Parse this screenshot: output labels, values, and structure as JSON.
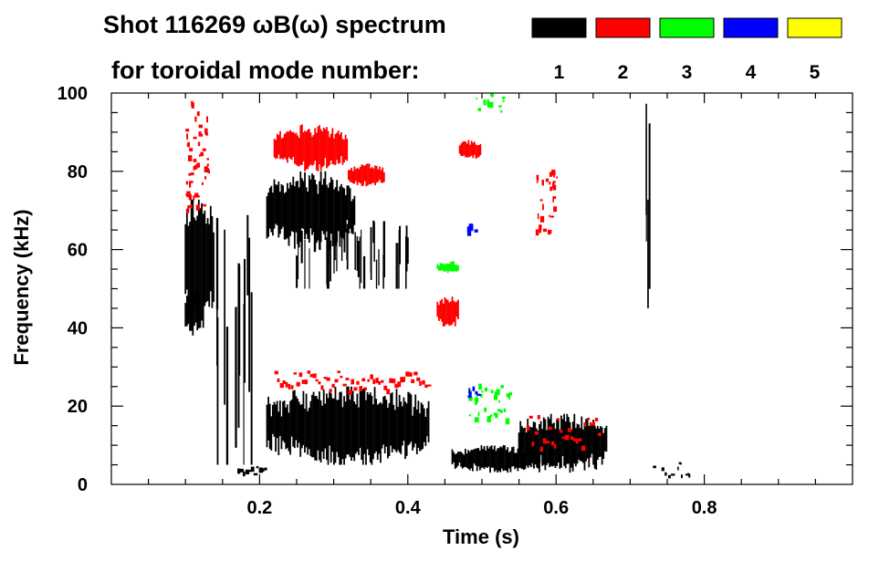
{
  "chart_data": {
    "type": "heatmap",
    "title_line1": "Shot 116269 ωB(ω) spectrum",
    "title_line2": "for toroidal mode number:",
    "xlabel": "Time (s)",
    "ylabel": "Frequency (kHz)",
    "xlim": [
      0.0,
      1.0
    ],
    "ylim": [
      0,
      100
    ],
    "xticks": [
      0.2,
      0.4,
      0.6,
      0.8
    ],
    "xtick_labels": [
      "0.2",
      "0.4",
      "0.6",
      "0.8"
    ],
    "yticks": [
      0,
      20,
      40,
      60,
      80,
      100
    ],
    "ytick_labels": [
      "0",
      "20",
      "40",
      "60",
      "80",
      "100"
    ],
    "legend": [
      {
        "label": "1",
        "color": "#000000"
      },
      {
        "label": "2",
        "color": "#ff0000"
      },
      {
        "label": "3",
        "color": "#00ff00"
      },
      {
        "label": "4",
        "color": "#0000ff"
      },
      {
        "label": "5",
        "color": "#ffff00"
      }
    ],
    "regions": [
      {
        "mode": 1,
        "t": [
          0.1,
          0.14
        ],
        "f": [
          40,
          75
        ],
        "kind": "blob"
      },
      {
        "mode": 1,
        "t": [
          0.1,
          0.12
        ],
        "f": [
          38,
          50
        ],
        "kind": "blob"
      },
      {
        "mode": 1,
        "t": [
          0.14,
          0.19
        ],
        "f": [
          5,
          72
        ],
        "kind": "streak"
      },
      {
        "mode": 1,
        "t": [
          0.17,
          0.21
        ],
        "f": [
          2,
          6
        ],
        "kind": "band"
      },
      {
        "mode": 1,
        "t": [
          0.21,
          0.43
        ],
        "f": [
          5,
          25
        ],
        "kind": "blob"
      },
      {
        "mode": 1,
        "t": [
          0.21,
          0.33
        ],
        "f": [
          60,
          80
        ],
        "kind": "blob"
      },
      {
        "mode": 1,
        "t": [
          0.25,
          0.4
        ],
        "f": [
          50,
          68
        ],
        "kind": "streak"
      },
      {
        "mode": 1,
        "t": [
          0.46,
          0.58
        ],
        "f": [
          3,
          10
        ],
        "kind": "blob"
      },
      {
        "mode": 1,
        "t": [
          0.55,
          0.67
        ],
        "f": [
          3,
          18
        ],
        "kind": "blob"
      },
      {
        "mode": 1,
        "t": [
          0.72,
          0.73
        ],
        "f": [
          45,
          100
        ],
        "kind": "streak"
      },
      {
        "mode": 1,
        "t": [
          0.73,
          0.78
        ],
        "f": [
          2,
          6
        ],
        "kind": "dots"
      },
      {
        "mode": 2,
        "t": [
          0.1,
          0.13
        ],
        "f": [
          70,
          98
        ],
        "kind": "dots"
      },
      {
        "mode": 2,
        "t": [
          0.22,
          0.32
        ],
        "f": [
          80,
          92
        ],
        "kind": "blob"
      },
      {
        "mode": 2,
        "t": [
          0.32,
          0.37
        ],
        "f": [
          76,
          82
        ],
        "kind": "blob"
      },
      {
        "mode": 2,
        "t": [
          0.22,
          0.43
        ],
        "f": [
          22,
          32
        ],
        "kind": "band"
      },
      {
        "mode": 2,
        "t": [
          0.44,
          0.47
        ],
        "f": [
          40,
          48
        ],
        "kind": "blob"
      },
      {
        "mode": 2,
        "t": [
          0.47,
          0.5
        ],
        "f": [
          83,
          88
        ],
        "kind": "blob"
      },
      {
        "mode": 2,
        "t": [
          0.56,
          0.66
        ],
        "f": [
          5,
          22
        ],
        "kind": "band"
      },
      {
        "mode": 2,
        "t": [
          0.57,
          0.6
        ],
        "f": [
          65,
          82
        ],
        "kind": "dots"
      },
      {
        "mode": 3,
        "t": [
          0.44,
          0.47
        ],
        "f": [
          54,
          57
        ],
        "kind": "blob"
      },
      {
        "mode": 3,
        "t": [
          0.48,
          0.54
        ],
        "f": [
          16,
          26
        ],
        "kind": "dots"
      },
      {
        "mode": 3,
        "t": [
          0.49,
          0.53
        ],
        "f": [
          95,
          100
        ],
        "kind": "dots"
      },
      {
        "mode": 4,
        "t": [
          0.48,
          0.49
        ],
        "f": [
          65,
          67
        ],
        "kind": "dots"
      },
      {
        "mode": 4,
        "t": [
          0.48,
          0.5
        ],
        "f": [
          22,
          26
        ],
        "kind": "dots"
      }
    ]
  }
}
